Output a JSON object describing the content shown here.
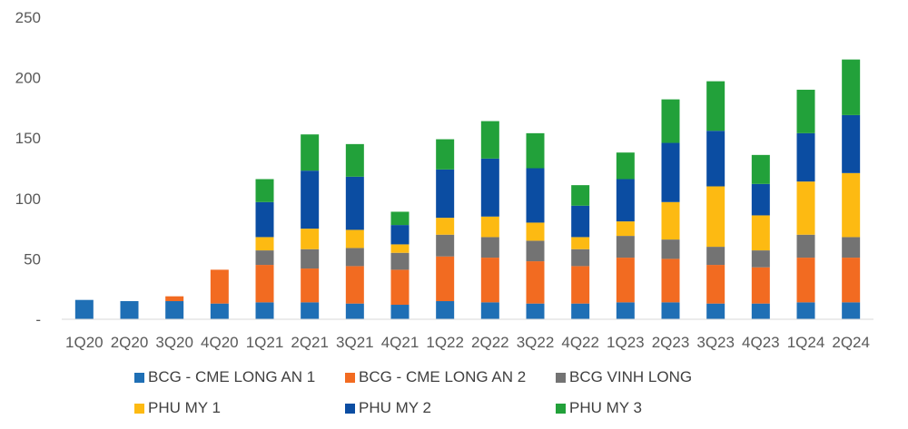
{
  "chart_data": {
    "type": "bar",
    "stacked": true,
    "categories": [
      "1Q20",
      "2Q20",
      "3Q20",
      "4Q20",
      "1Q21",
      "2Q21",
      "3Q21",
      "4Q21",
      "1Q22",
      "2Q22",
      "3Q22",
      "4Q22",
      "1Q23",
      "2Q23",
      "3Q23",
      "4Q23",
      "1Q24",
      "2Q24"
    ],
    "category_labels": [
      "1Q20",
      "2Q20",
      "3Q20",
      "4Q20",
      "1Q21",
      "2Q21",
      "3Q21",
      "4Q21",
      "1Q22",
      "2Q22",
      "3Q22",
      "4Q22",
      "1Q23",
      "2Q23",
      "3Q23",
      "4Q23",
      "1Q24",
      "2Q24"
    ],
    "series": [
      {
        "name": "BCG - CME LONG AN 1",
        "color": "#1F6FB5",
        "values": [
          16,
          15,
          15,
          13,
          14,
          14,
          13,
          12,
          15,
          14,
          13,
          13,
          14,
          14,
          13,
          13,
          14,
          14
        ]
      },
      {
        "name": "BCG - CME LONG AN 2",
        "color": "#F26B21",
        "values": [
          0,
          0,
          4,
          28,
          31,
          28,
          31,
          29,
          37,
          37,
          35,
          31,
          37,
          36,
          32,
          30,
          37,
          37
        ]
      },
      {
        "name": "BCG VINH LONG",
        "color": "#737373",
        "values": [
          0,
          0,
          0,
          0,
          12,
          16,
          15,
          14,
          18,
          17,
          17,
          14,
          18,
          16,
          15,
          14,
          19,
          17
        ]
      },
      {
        "name": "PHU MY 1",
        "color": "#FDBA12",
        "values": [
          0,
          0,
          0,
          0,
          11,
          17,
          15,
          7,
          14,
          17,
          15,
          10,
          12,
          31,
          50,
          29,
          44,
          53
        ]
      },
      {
        "name": "PHU MY 2",
        "color": "#0B4DA2",
        "values": [
          0,
          0,
          0,
          0,
          29,
          48,
          44,
          16,
          40,
          48,
          45,
          26,
          35,
          49,
          46,
          26,
          40,
          48
        ]
      },
      {
        "name": "PHU MY 3",
        "color": "#22A13A",
        "values": [
          0,
          0,
          0,
          0,
          19,
          30,
          27,
          11,
          25,
          31,
          29,
          17,
          22,
          36,
          41,
          24,
          36,
          46
        ]
      }
    ],
    "y_ticks": [
      "250",
      "200",
      "150",
      "100",
      "50",
      "-"
    ],
    "ylim": [
      0,
      250
    ],
    "legend_position": "bottom",
    "grid": false
  }
}
